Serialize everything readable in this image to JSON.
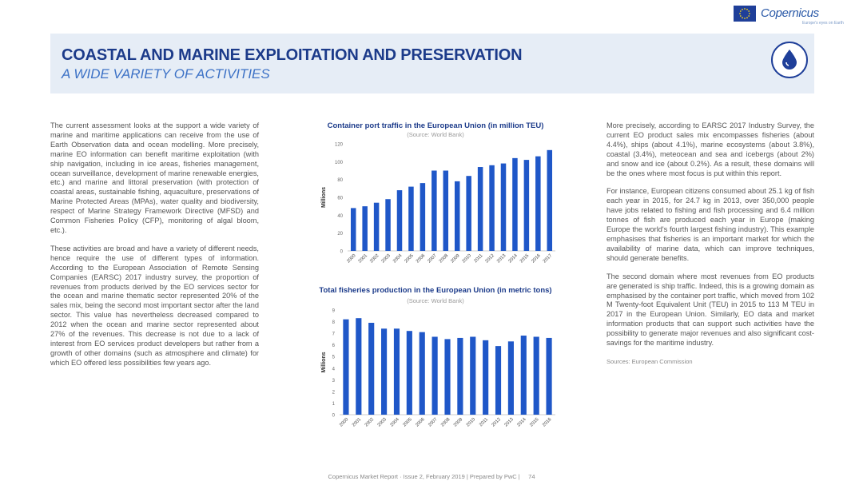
{
  "header": {
    "brand": "Copernicus",
    "brand_sub": "Europe's eyes on Earth",
    "title": "COASTAL AND MARINE EXPLOITATION AND PRESERVATION",
    "subtitle": "A WIDE VARIETY OF ACTIVITIES",
    "icon": "water-drop-icon"
  },
  "left_column": {
    "paragraphs": [
      "The current assessment looks at the support a wide variety of marine and maritime applications can receive from the use of Earth Observation data and ocean modelling. More precisely, marine EO information can benefit maritime exploitation (with ship navigation, including in ice areas, fisheries management, ocean surveillance, development of marine renewable energies, etc.) and marine and littoral preservation (with protection of coastal areas, sustainable fishing, aquaculture, preservations of Marine Protected Areas (MPAs), water quality and biodiversity, respect of Marine Strategy Framework Directive (MFSD) and Common Fisheries Policy (CFP), monitoring of algal bloom, etc.).",
      "These activities are broad and have a variety of different needs, hence require the use of different types of information. According to the European Association of Remote Sensing Companies (EARSC) 2017 industry survey, the proportion of revenues from products derived by the EO services sector for the ocean and marine thematic sector represented 20% of the sales mix, being the second most important sector after the land sector. This value has nevertheless decreased compared to 2012 when the ocean and marine sector represented about 27% of the revenues. This decrease is not due to a lack of interest from EO services product developers but rather from a growth of other domains (such as atmosphere and climate) for which EO offered less possibilities few years ago."
    ]
  },
  "right_column": {
    "paragraphs": [
      "More precisely, according to EARSC 2017 Industry Survey, the current EO product sales mix encompasses fisheries (about 4.4%), ships (about 4.1%), marine ecosystems (about 3.8%), coastal (3.4%), meteocean and sea and icebergs (about 2%) and snow and ice (about 0.2%). As a result, these domains will be the ones where most focus is put within this report.",
      "For instance, European citizens consumed about 25.1 kg of fish each year in 2015, for 24.7 kg in 2013, over 350,000 people have jobs related to fishing and fish processing and 6.4 million tonnes of fish are produced each year in Europe (making Europe the world's fourth largest fishing industry). This example emphasises that fisheries is an important market for which the availability of marine data, which can improve techniques, should generate benefits.",
      "The second domain where most revenues from EO products are generated is ship traffic. Indeed, this is a growing domain as emphasised by the container port traffic, which moved from 102 M Twenty-foot Equivalent Unit (TEU) in 2015 to 113 M TEU in 2017 in the European Union. Similarly, EO data and market information products that can support such activities have the possibility to generate major revenues and also significant cost-savings for the maritime industry."
    ],
    "sources": "Sources: European Commission"
  },
  "footer": {
    "text": "Copernicus Market Report · Issue 2, February 2019 | Prepared by PwC |",
    "page": "74"
  },
  "colors": {
    "bar": "#1f57c8",
    "title_blue": "#1c3b8a",
    "subtitle_blue": "#3d72c6",
    "banner_bg": "#e6edf6"
  },
  "chart_data": [
    {
      "type": "bar",
      "title": "Container port traffic in the European Union (in million TEU)",
      "subtitle": "(Source: World Bank)",
      "xlabel": "",
      "ylabel": "Millions",
      "ylim": [
        0,
        120
      ],
      "yticks": [
        0,
        20,
        40,
        60,
        80,
        100,
        120
      ],
      "grid": false,
      "categories": [
        "2000",
        "2001",
        "2002",
        "2003",
        "2004",
        "2005",
        "2006",
        "2007",
        "2008",
        "2009",
        "2010",
        "2011",
        "2012",
        "2013",
        "2014",
        "2015",
        "2016",
        "2017"
      ],
      "values": [
        48,
        50,
        54,
        58,
        68,
        72,
        76,
        90,
        90,
        78,
        84,
        94,
        96,
        98,
        104,
        102,
        106,
        113
      ]
    },
    {
      "type": "bar",
      "title": "Total fisheries production in the European Union (in metric tons)",
      "subtitle": "(Source: World Bank)",
      "xlabel": "",
      "ylabel": "Millions",
      "ylim": [
        0,
        9
      ],
      "yticks": [
        0,
        1,
        2,
        3,
        4,
        5,
        6,
        7,
        8,
        9
      ],
      "grid": false,
      "categories": [
        "2000",
        "2001",
        "2002",
        "2003",
        "2004",
        "2005",
        "2006",
        "2007",
        "2008",
        "2009",
        "2010",
        "2011",
        "2012",
        "2013",
        "2014",
        "2015",
        "2016"
      ],
      "values": [
        8.2,
        8.3,
        7.9,
        7.4,
        7.4,
        7.2,
        7.1,
        6.7,
        6.5,
        6.6,
        6.7,
        6.4,
        5.9,
        6.3,
        6.8,
        6.7,
        6.6
      ]
    }
  ]
}
